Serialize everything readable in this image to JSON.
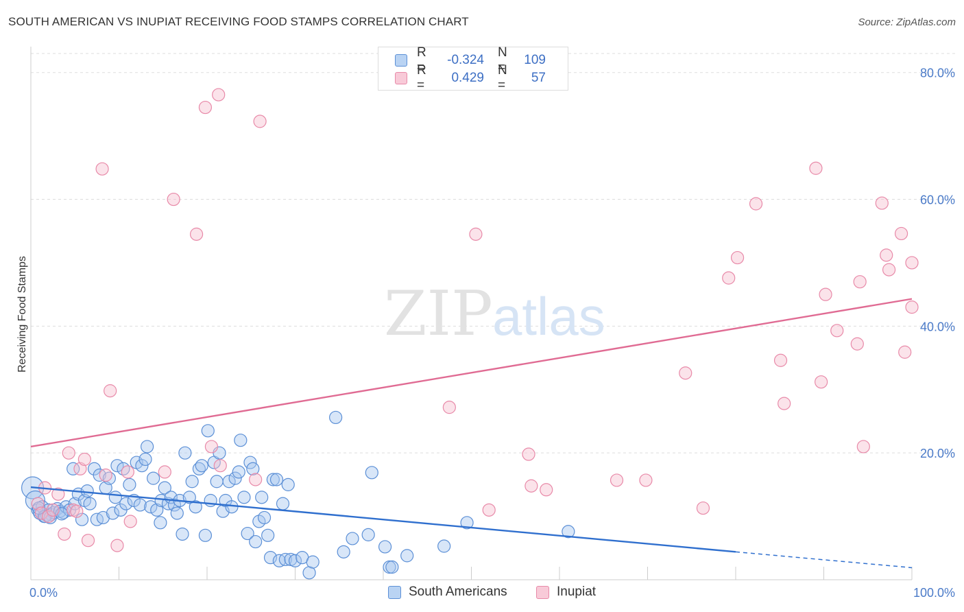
{
  "title": "SOUTH AMERICAN VS INUPIAT RECEIVING FOOD STAMPS CORRELATION CHART",
  "source": "Source: ZipAtlas.com",
  "watermark": {
    "zip": "ZIP",
    "atlas": "atlas"
  },
  "legend": {
    "rows": [
      {
        "r_label": "R =",
        "r_value": "-0.324",
        "n_label": "N =",
        "n_value": "109"
      },
      {
        "r_label": "R =",
        "r_value": "0.429",
        "n_label": "N =",
        "n_value": "57"
      }
    ]
  },
  "colors": {
    "blue_fill": "#a8c8f0",
    "blue_stroke": "#5b8fd6",
    "blue_line": "#2f6fce",
    "pink_fill": "#f6c0d0",
    "pink_stroke": "#e889a8",
    "pink_line": "#e06b93",
    "tick_text": "#4a7ac8",
    "grid": "#dddddd"
  },
  "chart_data": {
    "type": "scatter",
    "title": "SOUTH AMERICAN VS INUPIAT RECEIVING FOOD STAMPS CORRELATION CHART",
    "xlabel": "",
    "ylabel": "Receiving Food Stamps",
    "xlim": [
      0,
      100
    ],
    "ylim": [
      0,
      83
    ],
    "x_tick_labels": [
      "0.0%",
      "100.0%"
    ],
    "y_ticks": [
      20,
      40,
      60,
      80
    ],
    "y_tick_labels": [
      "20.0%",
      "40.0%",
      "60.0%",
      "80.0%"
    ],
    "grid": true,
    "legend_position": "top-center",
    "series": [
      {
        "name": "South Americans",
        "r": -0.324,
        "n": 109,
        "trend": {
          "x0": 0,
          "y0": 14.6,
          "x1": 80,
          "y1": 4.4,
          "dash_to_x": 100,
          "dash_to_y": 1.9
        },
        "points": [
          [
            0.2,
            14.5
          ],
          [
            0.5,
            12.5
          ],
          [
            0.8,
            11.0
          ],
          [
            1.0,
            10.5
          ],
          [
            1.3,
            11.5
          ],
          [
            1.5,
            10.0
          ],
          [
            1.8,
            10.2
          ],
          [
            2.0,
            11.0
          ],
          [
            2.3,
            10.3
          ],
          [
            2.6,
            10.6
          ],
          [
            3.0,
            11.2
          ],
          [
            3.3,
            10.8
          ],
          [
            3.7,
            10.6
          ],
          [
            4.0,
            11.5
          ],
          [
            4.4,
            11.0
          ],
          [
            4.8,
            17.5
          ],
          [
            5.0,
            12.0
          ],
          [
            5.4,
            13.5
          ],
          [
            5.8,
            9.5
          ],
          [
            6.1,
            12.5
          ],
          [
            6.4,
            14.0
          ],
          [
            6.7,
            12.0
          ],
          [
            7.2,
            17.5
          ],
          [
            7.5,
            9.5
          ],
          [
            7.8,
            16.5
          ],
          [
            8.2,
            9.8
          ],
          [
            8.5,
            14.5
          ],
          [
            8.9,
            16.0
          ],
          [
            9.3,
            10.5
          ],
          [
            9.6,
            13.0
          ],
          [
            9.8,
            18.0
          ],
          [
            10.2,
            11.0
          ],
          [
            10.5,
            17.5
          ],
          [
            10.8,
            12.0
          ],
          [
            11.2,
            15.0
          ],
          [
            11.7,
            12.5
          ],
          [
            12.0,
            18.5
          ],
          [
            12.4,
            11.8
          ],
          [
            12.6,
            18.0
          ],
          [
            13.0,
            19.0
          ],
          [
            13.2,
            21.0
          ],
          [
            13.6,
            11.5
          ],
          [
            13.9,
            16.0
          ],
          [
            14.3,
            11.0
          ],
          [
            14.7,
            9.0
          ],
          [
            14.8,
            12.5
          ],
          [
            15.2,
            14.5
          ],
          [
            15.6,
            12.0
          ],
          [
            15.9,
            13.0
          ],
          [
            16.3,
            11.8
          ],
          [
            16.6,
            10.5
          ],
          [
            16.9,
            12.5
          ],
          [
            17.2,
            7.2
          ],
          [
            17.5,
            20.0
          ],
          [
            18.0,
            13.0
          ],
          [
            18.3,
            15.5
          ],
          [
            18.7,
            11.5
          ],
          [
            19.1,
            17.5
          ],
          [
            19.4,
            18.0
          ],
          [
            19.8,
            7.0
          ],
          [
            20.1,
            23.5
          ],
          [
            20.4,
            12.5
          ],
          [
            20.8,
            18.5
          ],
          [
            21.1,
            15.5
          ],
          [
            21.4,
            20.0
          ],
          [
            21.8,
            10.8
          ],
          [
            22.1,
            12.5
          ],
          [
            22.5,
            15.5
          ],
          [
            22.8,
            11.5
          ],
          [
            23.2,
            16.0
          ],
          [
            23.6,
            17.0
          ],
          [
            23.8,
            22.0
          ],
          [
            24.2,
            13.0
          ],
          [
            24.6,
            7.3
          ],
          [
            24.9,
            18.5
          ],
          [
            25.2,
            17.5
          ],
          [
            25.5,
            6.0
          ],
          [
            25.9,
            9.2
          ],
          [
            26.2,
            13.0
          ],
          [
            26.5,
            9.8
          ],
          [
            26.9,
            7.0
          ],
          [
            27.2,
            3.5
          ],
          [
            27.5,
            15.8
          ],
          [
            27.9,
            15.8
          ],
          [
            28.2,
            3.0
          ],
          [
            28.6,
            12.0
          ],
          [
            28.9,
            3.2
          ],
          [
            29.2,
            15.0
          ],
          [
            29.5,
            3.2
          ],
          [
            30.0,
            3.0
          ],
          [
            30.8,
            3.5
          ],
          [
            31.6,
            1.1
          ],
          [
            32.0,
            2.8
          ],
          [
            34.6,
            25.6
          ],
          [
            35.5,
            4.4
          ],
          [
            36.5,
            6.5
          ],
          [
            38.3,
            7.1
          ],
          [
            38.7,
            16.9
          ],
          [
            40.2,
            5.2
          ],
          [
            40.7,
            2.0
          ],
          [
            41.0,
            2.0
          ],
          [
            42.7,
            3.8
          ],
          [
            46.9,
            5.3
          ],
          [
            49.5,
            9.0
          ],
          [
            61.0,
            7.6
          ],
          [
            1.6,
            10.0
          ],
          [
            2.2,
            9.8
          ],
          [
            0.9,
            11.3
          ],
          [
            3.5,
            10.4
          ]
        ]
      },
      {
        "name": "Inupiat",
        "r": 0.429,
        "n": 57,
        "trend": {
          "x0": 0,
          "y0": 21.0,
          "x1": 100,
          "y1": 44.3
        },
        "points": [
          [
            0.8,
            12.0
          ],
          [
            1.2,
            10.5
          ],
          [
            1.6,
            14.5
          ],
          [
            2.0,
            10.0
          ],
          [
            2.5,
            11.0
          ],
          [
            3.1,
            13.5
          ],
          [
            3.8,
            7.2
          ],
          [
            4.3,
            20.0
          ],
          [
            4.8,
            11.0
          ],
          [
            5.2,
            10.8
          ],
          [
            5.6,
            17.5
          ],
          [
            6.1,
            19.0
          ],
          [
            6.5,
            6.2
          ],
          [
            8.1,
            64.8
          ],
          [
            8.5,
            16.5
          ],
          [
            9.0,
            29.8
          ],
          [
            9.8,
            5.4
          ],
          [
            11.0,
            17.0
          ],
          [
            11.3,
            9.2
          ],
          [
            15.2,
            17.0
          ],
          [
            16.2,
            60.0
          ],
          [
            18.8,
            54.5
          ],
          [
            19.8,
            74.5
          ],
          [
            20.5,
            21.0
          ],
          [
            21.3,
            76.5
          ],
          [
            21.5,
            18.0
          ],
          [
            25.5,
            15.8
          ],
          [
            26.0,
            72.3
          ],
          [
            47.5,
            27.2
          ],
          [
            50.5,
            54.5
          ],
          [
            52.0,
            11.0
          ],
          [
            56.5,
            19.8
          ],
          [
            56.8,
            14.8
          ],
          [
            58.5,
            14.2
          ],
          [
            66.5,
            15.7
          ],
          [
            69.8,
            15.7
          ],
          [
            74.3,
            32.6
          ],
          [
            76.3,
            11.3
          ],
          [
            79.2,
            47.6
          ],
          [
            80.2,
            50.8
          ],
          [
            82.3,
            59.3
          ],
          [
            85.1,
            34.6
          ],
          [
            85.5,
            27.8
          ],
          [
            89.1,
            64.9
          ],
          [
            89.7,
            31.2
          ],
          [
            90.2,
            45.0
          ],
          [
            91.5,
            39.3
          ],
          [
            93.8,
            37.2
          ],
          [
            94.1,
            47.0
          ],
          [
            94.5,
            21.0
          ],
          [
            96.6,
            59.4
          ],
          [
            97.1,
            51.2
          ],
          [
            97.4,
            48.9
          ],
          [
            98.8,
            54.6
          ],
          [
            99.2,
            35.9
          ],
          [
            100.0,
            50.0
          ],
          [
            100.0,
            43.0
          ]
        ]
      }
    ]
  },
  "bottom_legend": [
    {
      "label": "South Americans"
    },
    {
      "label": "Inupiat"
    }
  ]
}
